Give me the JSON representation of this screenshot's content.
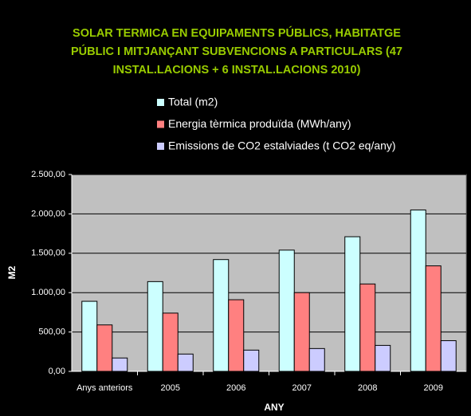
{
  "chart_data": {
    "type": "bar",
    "title": [
      "SOLAR TERMICA EN EQUIPAMENTS PÚBLICS, HABITATGE",
      "PÚBLIC I MITJANÇANT SUBVENCIONS A PARTICULARS (47",
      "INSTAL.LACIONS + 6 INSTAL.LACIONS 2010)"
    ],
    "x_label": "ANY",
    "y_label": "M2",
    "categories": [
      "Anys anteriors",
      "2005",
      "2006",
      "2007",
      "2008",
      "2009"
    ],
    "series": [
      {
        "name": "Total (m2)",
        "color": "#ccffff",
        "values": [
          890,
          1140,
          1420,
          1540,
          1710,
          2050
        ]
      },
      {
        "name": "Energia tèrmica produïda (MWh/any)",
        "color": "#ff8080",
        "values": [
          590,
          740,
          910,
          1000,
          1110,
          1340
        ]
      },
      {
        "name": "Emissions de CO2 estalviades (t CO2 eq/any)",
        "color": "#ccccff",
        "values": [
          170,
          220,
          270,
          290,
          330,
          390
        ]
      }
    ],
    "ylim": [
      0,
      2500
    ],
    "yticks": [
      {
        "value": 0,
        "label": "0,00"
      },
      {
        "value": 500,
        "label": "500,00"
      },
      {
        "value": 1000,
        "label": "1.000,00"
      },
      {
        "value": 1500,
        "label": "1.500,00"
      },
      {
        "value": 2000,
        "label": "2.000,00"
      },
      {
        "value": 2500,
        "label": "2.500,00"
      }
    ],
    "grid": true
  }
}
